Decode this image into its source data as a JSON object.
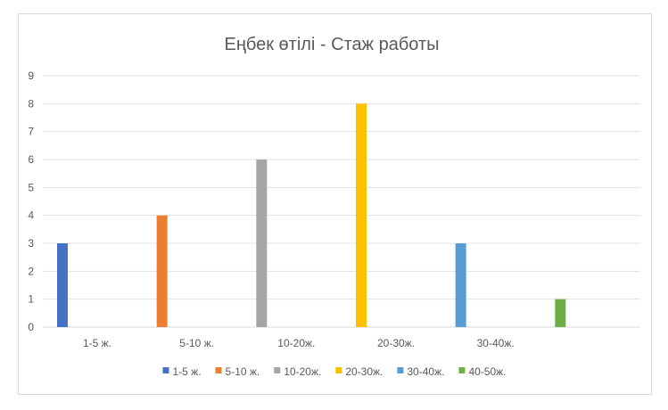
{
  "chart_data": {
    "type": "bar",
    "title": "Еңбек өтілі - Стаж работы",
    "categories": [
      "1-5 ж.",
      "5-10 ж.",
      "10-20ж.",
      "20-30ж.",
      "30-40ж.",
      ""
    ],
    "series": [
      {
        "name": "1-5 ж.",
        "color": "#4472C4",
        "values": [
          3,
          null,
          null,
          null,
          null,
          null
        ]
      },
      {
        "name": "5-10 ж.",
        "color": "#ED7D31",
        "values": [
          null,
          4,
          null,
          null,
          null,
          null
        ]
      },
      {
        "name": "10-20ж.",
        "color": "#A5A5A5",
        "values": [
          null,
          null,
          6,
          null,
          null,
          null
        ]
      },
      {
        "name": "20-30ж.",
        "color": "#FFC000",
        "values": [
          null,
          null,
          null,
          8,
          null,
          null
        ]
      },
      {
        "name": "30-40ж.",
        "color": "#5B9BD5",
        "values": [
          null,
          null,
          null,
          null,
          3,
          null
        ]
      },
      {
        "name": "40-50ж.",
        "color": "#70AD47",
        "values": [
          null,
          null,
          null,
          null,
          null,
          1
        ]
      }
    ],
    "ylim": [
      0,
      9
    ],
    "yticks": [
      "0",
      "1",
      "2",
      "3",
      "4",
      "5",
      "6",
      "7",
      "8",
      "9"
    ],
    "grid": true,
    "legend_position": "bottom"
  }
}
